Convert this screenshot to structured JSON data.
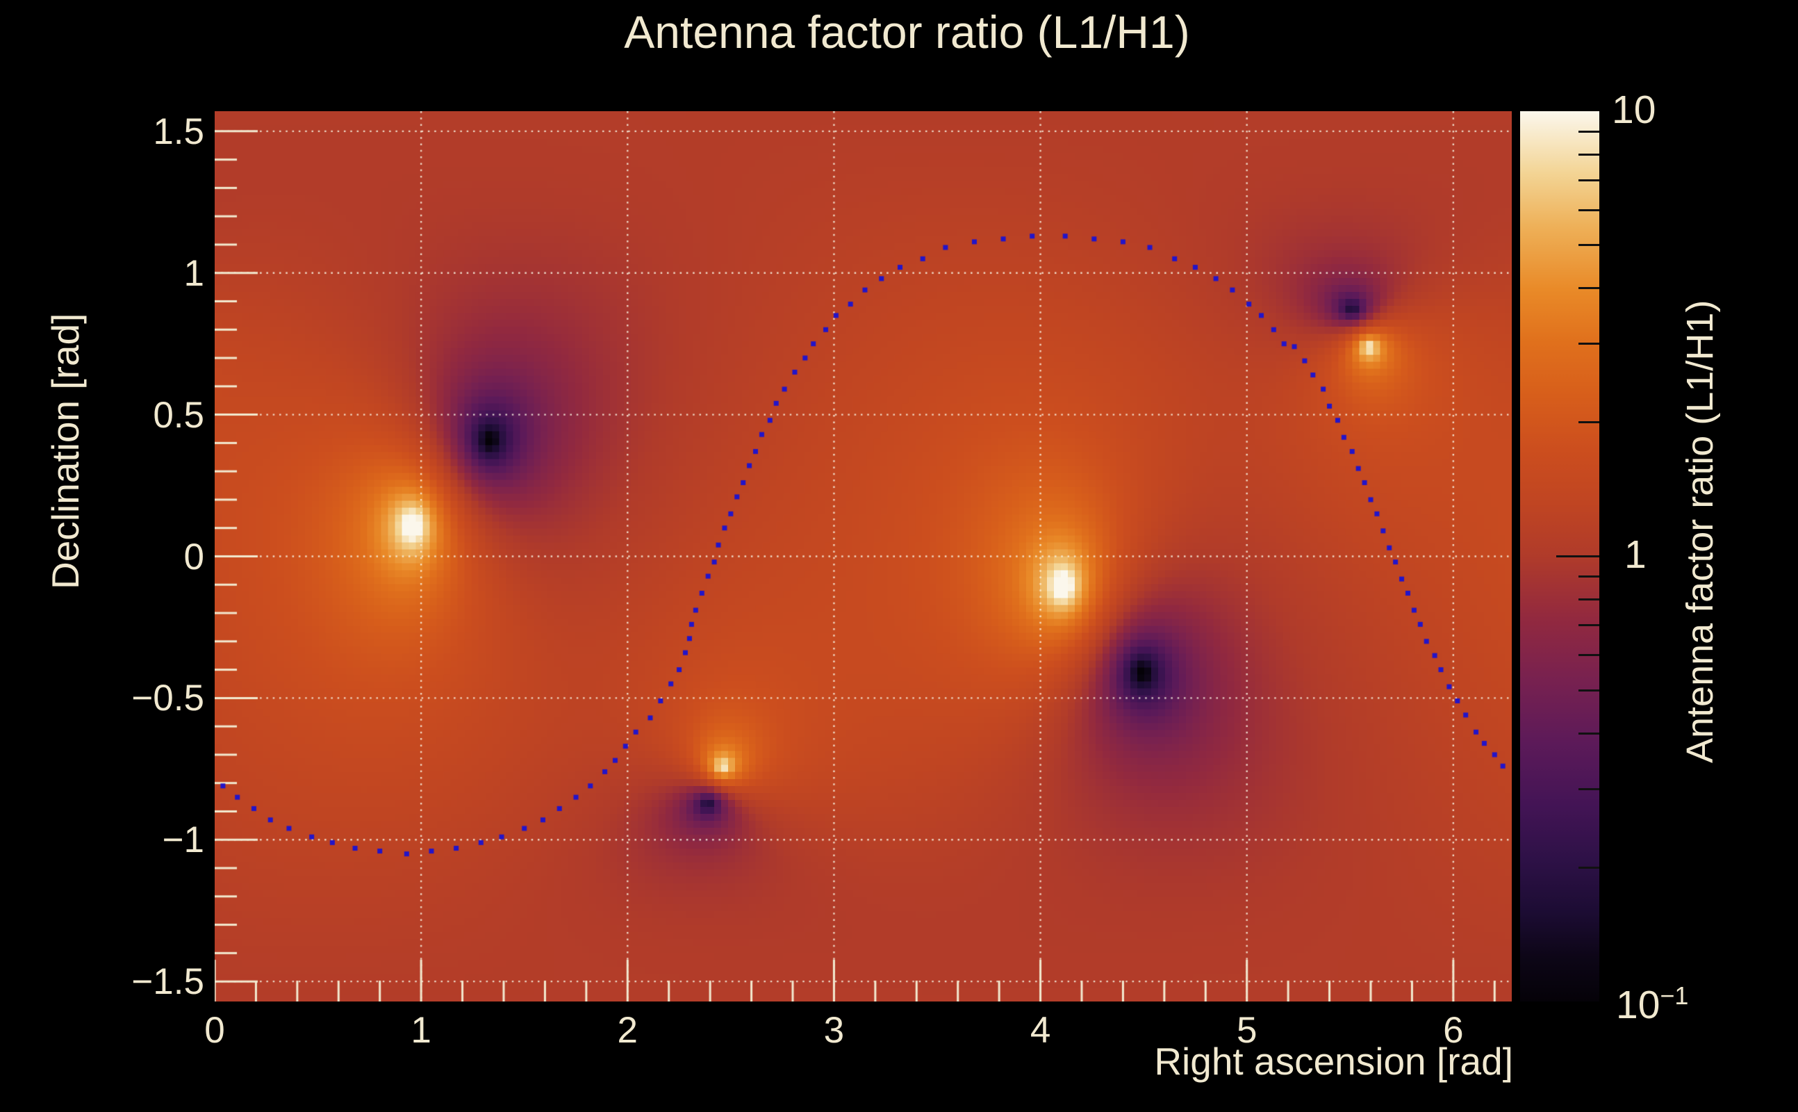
{
  "title": {
    "text": "Antenna factor ratio (L1/H1)"
  },
  "colors": {
    "background": "#000000",
    "text": "#f1e9d0",
    "grid": "rgba(248,242,224,0.85)",
    "axis_tick": "#f2ead0",
    "track_dot": "#2214c9",
    "colorbar_tick": "#111111"
  },
  "axes": {
    "x": {
      "title": "Right ascension [rad]",
      "min": 0,
      "max": 6.2832,
      "major_ticks": [
        {
          "value": 0,
          "label": "0"
        },
        {
          "value": 1,
          "label": "1"
        },
        {
          "value": 2,
          "label": "2"
        },
        {
          "value": 3,
          "label": "3"
        },
        {
          "value": 4,
          "label": "4"
        },
        {
          "value": 5,
          "label": "5"
        },
        {
          "value": 6,
          "label": "6"
        }
      ],
      "minor_step": 0.2
    },
    "y": {
      "title": "Declination [rad]",
      "min": -1.5708,
      "max": 1.5708,
      "major_ticks": [
        {
          "value": 1.5,
          "label": "1.5"
        },
        {
          "value": 1,
          "label": "1"
        },
        {
          "value": 0.5,
          "label": "0.5"
        },
        {
          "value": 0,
          "label": "0"
        },
        {
          "value": -0.5,
          "label": "−0.5"
        },
        {
          "value": -1,
          "label": "−1"
        },
        {
          "value": -1.5,
          "label": "−1.5"
        }
      ],
      "minor_step": 0.1
    },
    "gridline_x_values": [
      1,
      2,
      3,
      4,
      5,
      6
    ],
    "gridline_y_values": [
      -1.5,
      -1,
      -0.5,
      0,
      0.5,
      1,
      1.5
    ]
  },
  "colorbar": {
    "title": "Antenna factor ratio (L1/H1)",
    "scale": "log",
    "min": 0.1,
    "max": 10,
    "tick_labels": [
      {
        "text": "10",
        "exp": "",
        "value": 10
      },
      {
        "text": "1",
        "exp": "",
        "value": 1
      },
      {
        "text": "10",
        "exp": "−1",
        "value": 0.1
      }
    ],
    "major_tick_values": [
      1
    ],
    "minor_tick_values": [
      0.2,
      0.3,
      0.4,
      0.5,
      0.6,
      0.7,
      0.8,
      0.9,
      2,
      3,
      4,
      5,
      6,
      7,
      8,
      9
    ],
    "gradient_stops": [
      [
        0.0,
        "#050208"
      ],
      [
        0.05,
        "#0d0617"
      ],
      [
        0.1,
        "#1c0c33"
      ],
      [
        0.16,
        "#2e1147"
      ],
      [
        0.22,
        "#431455"
      ],
      [
        0.29,
        "#5c1a59"
      ],
      [
        0.36,
        "#772150"
      ],
      [
        0.43,
        "#92293f"
      ],
      [
        0.5,
        "#b03b2a"
      ],
      [
        0.56,
        "#c04522"
      ],
      [
        0.62,
        "#cc4e1e"
      ],
      [
        0.68,
        "#d75e1b"
      ],
      [
        0.74,
        "#e0701c"
      ],
      [
        0.8,
        "#e98a28"
      ],
      [
        0.87,
        "#eeb058"
      ],
      [
        0.93,
        "#f3d494"
      ],
      [
        1.0,
        "#fbf7ec"
      ]
    ]
  },
  "chart_data": {
    "type": "heatmap",
    "title": "Antenna factor ratio (L1/H1)",
    "xlabel": "Right ascension [rad]",
    "ylabel": "Declination [rad]",
    "zlabel": "Antenna factor ratio (L1/H1)",
    "x_range": [
      0,
      6.2832
    ],
    "y_range": [
      -1.5708,
      1.5708
    ],
    "z_range": [
      0.1,
      10
    ],
    "z_scale": "log",
    "background_ratio_log10": 0.1,
    "features": [
      {
        "name": "H1-null-bright-peak-1",
        "kind": "bright-peak",
        "ra": 0.96,
        "dec": 0.11,
        "sign": 1,
        "amplitude": 1.0,
        "core_radius": 0.03
      },
      {
        "name": "L1-null-dark-spot-1",
        "kind": "dark-null",
        "ra": 1.33,
        "dec": 0.41,
        "sign": -1,
        "amplitude": 1.0,
        "core_radius": 0.03
      },
      {
        "name": "H1-null-bright-peak-2",
        "kind": "bright-peak",
        "ra": 4.11,
        "dec": -0.105,
        "sign": 1,
        "amplitude": 1.0,
        "core_radius": 0.03
      },
      {
        "name": "L1-null-dark-spot-2",
        "kind": "dark-null",
        "ra": 4.49,
        "dec": -0.41,
        "sign": -1,
        "amplitude": 1.0,
        "core_radius": 0.03
      },
      {
        "name": "H1-null-bright-peak-3",
        "kind": "bright-peak",
        "ra": 2.46,
        "dec": -0.744,
        "sign": 1,
        "amplitude": 1.0,
        "core_radius": 0.018
      },
      {
        "name": "L1-null-dark-spot-3",
        "kind": "dark-null",
        "ra": 2.39,
        "dec": -0.871,
        "sign": -1,
        "amplitude": 1.0,
        "core_radius": 0.018
      },
      {
        "name": "L1-null-dark-spot-4",
        "kind": "dark-null",
        "ra": 5.51,
        "dec": 0.87,
        "sign": -1,
        "amplitude": 1.0,
        "core_radius": 0.018
      },
      {
        "name": "H1-null-bright-peak-4",
        "kind": "bright-peak",
        "ra": 5.59,
        "dec": 0.74,
        "sign": 1,
        "amplitude": 1.0,
        "core_radius": 0.018
      }
    ],
    "sky_track_points": [
      [
        0.04,
        -0.81
      ],
      [
        0.11,
        -0.85
      ],
      [
        0.19,
        -0.89
      ],
      [
        0.27,
        -0.93
      ],
      [
        0.36,
        -0.96
      ],
      [
        0.47,
        -0.99
      ],
      [
        0.57,
        -1.01
      ],
      [
        0.68,
        -1.03
      ],
      [
        0.8,
        -1.04
      ],
      [
        0.93,
        -1.05
      ],
      [
        1.05,
        -1.04
      ],
      [
        1.17,
        -1.03
      ],
      [
        1.29,
        -1.01
      ],
      [
        1.39,
        -0.99
      ],
      [
        1.5,
        -0.96
      ],
      [
        1.59,
        -0.93
      ],
      [
        1.67,
        -0.89
      ],
      [
        1.75,
        -0.85
      ],
      [
        1.82,
        -0.81
      ],
      [
        1.89,
        -0.76
      ],
      [
        1.94,
        -0.72
      ],
      [
        1.99,
        -0.67
      ],
      [
        2.04,
        -0.62
      ],
      [
        2.11,
        -0.57
      ],
      [
        2.16,
        -0.51
      ],
      [
        2.21,
        -0.45
      ],
      [
        2.25,
        -0.4
      ],
      [
        2.28,
        -0.34
      ],
      [
        2.3,
        -0.29
      ],
      [
        2.31,
        -0.24
      ],
      [
        2.33,
        -0.19
      ],
      [
        2.36,
        -0.13
      ],
      [
        2.39,
        -0.07
      ],
      [
        2.42,
        -0.02
      ],
      [
        2.44,
        0.04
      ],
      [
        2.47,
        0.1
      ],
      [
        2.5,
        0.15
      ],
      [
        2.53,
        0.21
      ],
      [
        2.56,
        0.26
      ],
      [
        2.59,
        0.32
      ],
      [
        2.62,
        0.37
      ],
      [
        2.65,
        0.43
      ],
      [
        2.69,
        0.48
      ],
      [
        2.72,
        0.54
      ],
      [
        2.76,
        0.59
      ],
      [
        2.81,
        0.65
      ],
      [
        2.86,
        0.7
      ],
      [
        2.9,
        0.75
      ],
      [
        2.96,
        0.8
      ],
      [
        3.01,
        0.85
      ],
      [
        3.08,
        0.89
      ],
      [
        3.15,
        0.94
      ],
      [
        3.23,
        0.98
      ],
      [
        3.32,
        1.02
      ],
      [
        3.43,
        1.05
      ],
      [
        3.54,
        1.09
      ],
      [
        3.68,
        1.11
      ],
      [
        3.82,
        1.12
      ],
      [
        3.96,
        1.13
      ],
      [
        4.12,
        1.13
      ],
      [
        4.26,
        1.12
      ],
      [
        4.4,
        1.11
      ],
      [
        4.53,
        1.09
      ],
      [
        4.65,
        1.05
      ],
      [
        4.75,
        1.02
      ],
      [
        4.85,
        0.98
      ],
      [
        4.93,
        0.94
      ],
      [
        5.01,
        0.89
      ],
      [
        5.07,
        0.85
      ],
      [
        5.13,
        0.8
      ],
      [
        5.18,
        0.75
      ],
      [
        5.23,
        0.74
      ],
      [
        5.28,
        0.69
      ],
      [
        5.32,
        0.64
      ],
      [
        5.37,
        0.59
      ],
      [
        5.4,
        0.53
      ],
      [
        5.44,
        0.48
      ],
      [
        5.47,
        0.42
      ],
      [
        5.51,
        0.37
      ],
      [
        5.54,
        0.31
      ],
      [
        5.57,
        0.26
      ],
      [
        5.6,
        0.2
      ],
      [
        5.63,
        0.15
      ],
      [
        5.66,
        0.09
      ],
      [
        5.69,
        0.03
      ],
      [
        5.72,
        -0.02
      ],
      [
        5.75,
        -0.08
      ],
      [
        5.78,
        -0.13
      ],
      [
        5.81,
        -0.19
      ],
      [
        5.84,
        -0.24
      ],
      [
        5.87,
        -0.3
      ],
      [
        5.91,
        -0.35
      ],
      [
        5.94,
        -0.4
      ],
      [
        5.98,
        -0.46
      ],
      [
        6.02,
        -0.51
      ],
      [
        6.06,
        -0.56
      ],
      [
        6.11,
        -0.62
      ],
      [
        6.15,
        -0.66
      ],
      [
        6.2,
        -0.7
      ],
      [
        6.24,
        -0.74
      ]
    ]
  },
  "renderer": {
    "grid_cols": 187,
    "grid_rows": 128
  }
}
